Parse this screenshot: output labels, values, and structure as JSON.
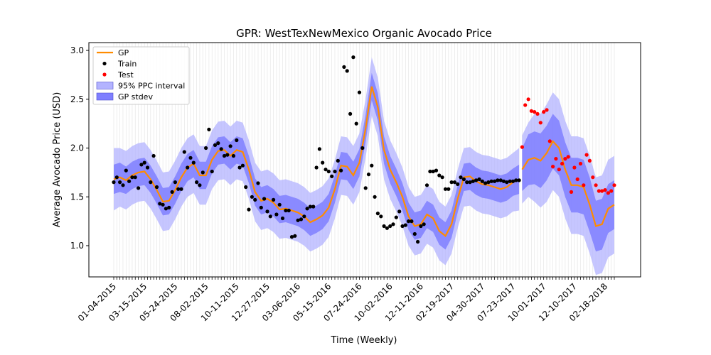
{
  "chart_data": {
    "type": "line",
    "title": "GPR: WestTexNewMexico Organic Avocado Price",
    "xlabel": "Time (Weekly)",
    "ylabel": "Average Avocado Price (USD)",
    "x_range_weeks": [
      0,
      164
    ],
    "ylim": [
      0.68,
      3.08
    ],
    "yticks": [
      1.0,
      1.5,
      2.0,
      2.5,
      3.0
    ],
    "ytick_labels": [
      "1.0",
      "1.5",
      "2.0",
      "2.5",
      "3.0"
    ],
    "xtick_weeks": [
      0,
      10,
      20,
      30,
      40,
      50,
      60,
      70,
      80,
      90,
      100,
      110,
      120,
      130,
      140,
      150,
      160
    ],
    "xtick_labels": [
      "01-04-2015",
      "03-15-2015",
      "05-24-2015",
      "08-02-2015",
      "10-11-2015",
      "12-27-2015",
      "03-06-2016",
      "05-15-2016",
      "07-24-2016",
      "10-02-2016",
      "12-11-2016",
      "02-19-2017",
      "04-30-2017",
      "07-23-2017",
      "10-01-2017",
      "12-10-2017",
      "02-18-2018"
    ],
    "grid": "vertical weekly lines",
    "legend_position": "top-left",
    "legend": [
      {
        "label": "GP",
        "kind": "line",
        "color": "#ff8c00"
      },
      {
        "label": "Train",
        "kind": "marker",
        "color": "#000000"
      },
      {
        "label": "Test",
        "kind": "marker",
        "color": "#ff0000"
      },
      {
        "label": "95% PPC interval",
        "kind": "patch",
        "color": "#b3b3ff"
      },
      {
        "label": "GP stdev",
        "kind": "patch",
        "color": "#7f7fff"
      }
    ],
    "series": [
      {
        "name": "GP",
        "x": [
          0,
          2,
          4,
          6,
          8,
          10,
          12,
          14,
          16,
          18,
          20,
          22,
          24,
          26,
          28,
          30,
          32,
          34,
          36,
          38,
          40,
          42,
          44,
          46,
          48,
          50,
          52,
          54,
          56,
          58,
          60,
          62,
          64,
          66,
          68,
          70,
          72,
          74,
          76,
          78,
          80,
          82,
          84,
          86,
          88,
          90,
          92,
          94,
          96,
          98,
          100,
          102,
          104,
          106,
          108,
          110,
          112,
          114,
          116,
          118,
          120,
          122,
          124,
          126,
          128,
          130,
          132
        ],
        "y": [
          1.68,
          1.7,
          1.67,
          1.72,
          1.75,
          1.76,
          1.68,
          1.57,
          1.45,
          1.46,
          1.57,
          1.7,
          1.8,
          1.84,
          1.72,
          1.72,
          1.88,
          1.97,
          1.98,
          1.92,
          1.98,
          1.96,
          1.78,
          1.55,
          1.46,
          1.48,
          1.44,
          1.37,
          1.38,
          1.36,
          1.34,
          1.3,
          1.24,
          1.27,
          1.31,
          1.39,
          1.58,
          1.82,
          1.81,
          1.72,
          1.85,
          2.2,
          2.63,
          2.42,
          1.98,
          1.78,
          1.65,
          1.5,
          1.3,
          1.2,
          1.22,
          1.32,
          1.28,
          1.15,
          1.1,
          1.22,
          1.48,
          1.7,
          1.71,
          1.66,
          1.63,
          1.62,
          1.6,
          1.58,
          1.6,
          1.65,
          1.68
        ],
        "stdev_band_halfwidth": [
          0.15,
          0.15,
          0.14,
          0.14,
          0.14,
          0.14,
          0.14,
          0.14,
          0.14,
          0.14,
          0.14,
          0.14,
          0.14,
          0.14,
          0.14,
          0.14,
          0.14,
          0.14,
          0.14,
          0.14,
          0.14,
          0.14,
          0.14,
          0.14,
          0.14,
          0.14,
          0.14,
          0.14,
          0.14,
          0.14,
          0.14,
          0.14,
          0.14,
          0.14,
          0.14,
          0.14,
          0.14,
          0.14,
          0.14,
          0.14,
          0.14,
          0.14,
          0.14,
          0.14,
          0.14,
          0.14,
          0.14,
          0.14,
          0.14,
          0.14,
          0.14,
          0.14,
          0.14,
          0.14,
          0.14,
          0.14,
          0.14,
          0.14,
          0.14,
          0.14,
          0.14,
          0.14,
          0.14,
          0.14,
          0.14,
          0.14,
          0.15
        ],
        "ppc95_halfwidth": [
          0.32,
          0.3,
          0.3,
          0.3,
          0.3,
          0.3,
          0.3,
          0.3,
          0.3,
          0.3,
          0.3,
          0.3,
          0.3,
          0.3,
          0.3,
          0.3,
          0.3,
          0.3,
          0.3,
          0.3,
          0.3,
          0.3,
          0.3,
          0.3,
          0.3,
          0.3,
          0.3,
          0.3,
          0.3,
          0.3,
          0.3,
          0.3,
          0.3,
          0.3,
          0.3,
          0.3,
          0.3,
          0.3,
          0.3,
          0.3,
          0.3,
          0.3,
          0.3,
          0.3,
          0.3,
          0.3,
          0.3,
          0.3,
          0.3,
          0.3,
          0.3,
          0.3,
          0.3,
          0.3,
          0.3,
          0.3,
          0.3,
          0.3,
          0.3,
          0.3,
          0.3,
          0.3,
          0.3,
          0.3,
          0.3,
          0.3,
          0.32
        ]
      },
      {
        "name": "GP",
        "x": [
          133,
          135,
          137,
          139,
          141,
          143,
          145,
          147,
          149,
          151,
          153,
          155,
          157,
          159,
          161,
          163
        ],
        "y": [
          1.78,
          1.88,
          1.9,
          1.87,
          1.95,
          2.07,
          2.0,
          1.78,
          1.62,
          1.62,
          1.6,
          1.42,
          1.2,
          1.22,
          1.38,
          1.42
        ],
        "stdev_band_halfwidth": [
          0.22,
          0.26,
          0.27,
          0.28,
          0.28,
          0.28,
          0.28,
          0.28,
          0.28,
          0.28,
          0.28,
          0.28,
          0.26,
          0.26,
          0.25,
          0.25
        ],
        "ppc95_halfwidth": [
          0.35,
          0.38,
          0.45,
          0.48,
          0.5,
          0.5,
          0.5,
          0.5,
          0.5,
          0.5,
          0.5,
          0.5,
          0.5,
          0.5,
          0.5,
          0.5
        ]
      },
      {
        "name": "Train",
        "x": [
          0,
          1,
          2,
          3,
          4,
          5,
          6,
          7,
          8,
          9,
          10,
          11,
          12,
          13,
          14,
          15,
          16,
          17,
          18,
          19,
          20,
          21,
          22,
          23,
          24,
          25,
          26,
          27,
          28,
          29,
          30,
          31,
          32,
          33,
          34,
          35,
          36,
          37,
          38,
          39,
          40,
          41,
          42,
          43,
          44,
          45,
          46,
          47,
          48,
          49,
          50,
          51,
          52,
          53,
          54,
          55,
          56,
          57,
          58,
          59,
          60,
          61,
          62,
          63,
          64,
          65,
          66,
          67,
          68,
          69,
          70,
          71,
          72,
          73,
          74,
          75,
          76,
          77,
          78,
          79,
          80,
          81,
          82,
          83,
          84,
          85,
          86,
          87,
          88,
          89,
          90,
          91,
          92,
          93,
          94,
          95,
          96,
          97,
          98,
          99,
          100,
          101,
          102,
          103,
          104,
          105,
          106,
          107,
          108,
          109,
          110,
          111,
          112,
          113,
          114,
          115,
          116,
          117,
          118,
          119,
          120,
          121,
          122,
          123,
          124,
          125,
          126,
          127,
          128,
          129,
          130,
          131,
          132
        ],
        "y": [
          1.65,
          1.7,
          1.65,
          1.62,
          1.77,
          1.66,
          1.7,
          1.7,
          1.59,
          1.83,
          1.85,
          1.8,
          1.65,
          1.92,
          1.6,
          1.43,
          1.42,
          1.38,
          1.39,
          1.55,
          1.65,
          1.58,
          1.58,
          1.96,
          1.8,
          1.9,
          1.85,
          1.65,
          1.62,
          1.75,
          2.0,
          2.19,
          1.76,
          2.03,
          2.05,
          1.99,
          1.92,
          1.93,
          2.02,
          1.92,
          2.08,
          1.8,
          1.82,
          1.6,
          1.37,
          1.5,
          1.47,
          1.64,
          1.39,
          1.48,
          1.35,
          1.3,
          1.47,
          1.32,
          1.42,
          1.28,
          1.36,
          1.36,
          1.09,
          1.1,
          1.26,
          1.27,
          1.3,
          1.38,
          1.4,
          1.4,
          1.8,
          1.99,
          1.85,
          1.78,
          1.76,
          1.71,
          1.76,
          1.87,
          1.77,
          2.83,
          2.79,
          2.35,
          2.93,
          2.25,
          2.57,
          2.0,
          1.59,
          1.73,
          1.82,
          1.5,
          1.33,
          1.3,
          1.2,
          1.18,
          1.2,
          1.22,
          1.29,
          1.35,
          1.2,
          1.21,
          1.25,
          1.25,
          1.12,
          1.04,
          1.2,
          1.22,
          1.62,
          1.76,
          1.76,
          1.77,
          1.72,
          1.7,
          1.58,
          1.58,
          1.65,
          1.65,
          1.63,
          1.7,
          1.68,
          1.65,
          1.65,
          1.66,
          1.67,
          1.68,
          1.66,
          1.64,
          1.65,
          1.66,
          1.66,
          1.67,
          1.67,
          1.66,
          1.65,
          1.66,
          1.66,
          1.67,
          1.67
        ]
      },
      {
        "name": "Test",
        "x": [
          133,
          134,
          135,
          136,
          137,
          138,
          139,
          140,
          141,
          142,
          143,
          144,
          145,
          146,
          147,
          148,
          149,
          150,
          151,
          152,
          153,
          154,
          155,
          156,
          157,
          158,
          159,
          160,
          161,
          162,
          163
        ],
        "y": [
          2.01,
          2.44,
          2.5,
          2.38,
          2.37,
          2.35,
          2.26,
          2.37,
          2.39,
          2.07,
          1.81,
          1.89,
          1.78,
          1.84,
          1.89,
          1.91,
          1.55,
          1.8,
          1.68,
          1.84,
          1.62,
          1.93,
          1.87,
          1.7,
          1.62,
          1.56,
          1.56,
          1.57,
          1.54,
          1.56,
          1.62
        ]
      }
    ]
  }
}
